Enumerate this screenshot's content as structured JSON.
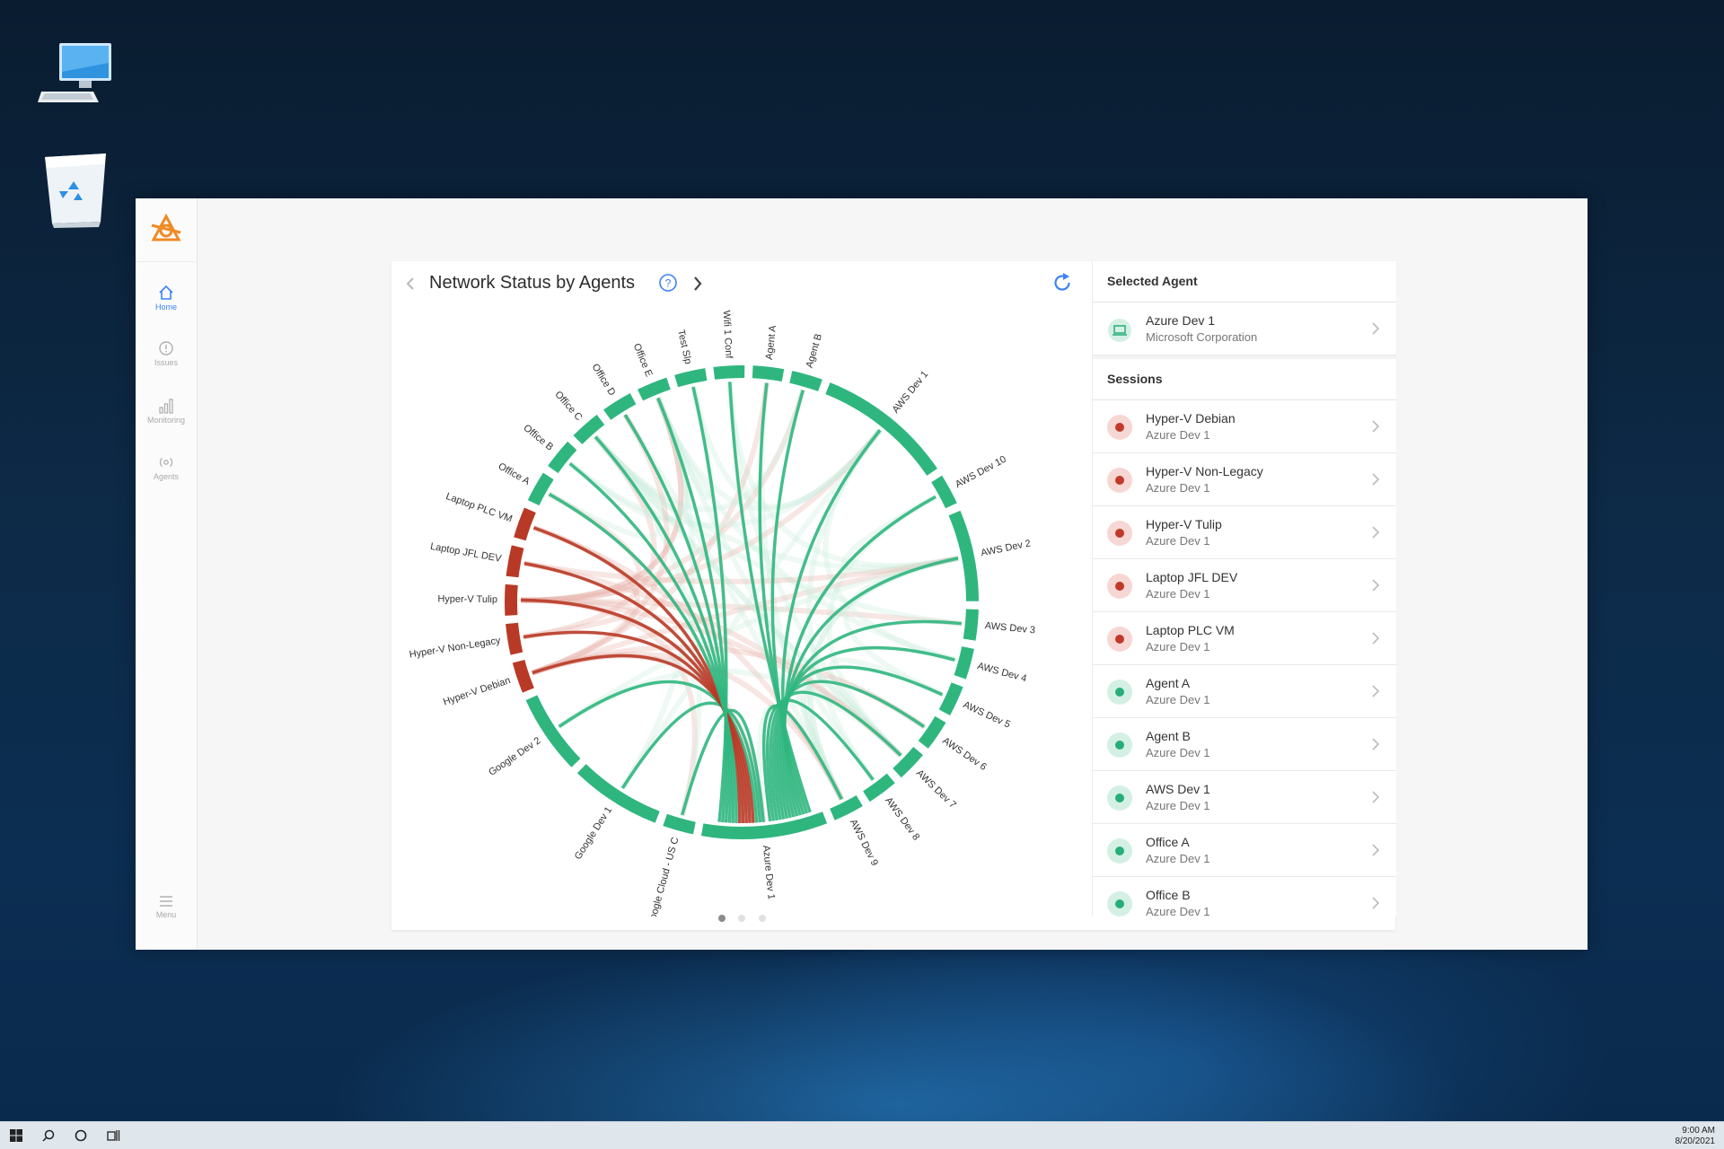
{
  "desktop": {
    "icons": [
      "this-pc-icon",
      "recycle-bin-icon"
    ]
  },
  "sidebar": {
    "items": [
      {
        "label": "Home",
        "icon": "home-icon",
        "active": true
      },
      {
        "label": "Issues",
        "icon": "alert-circle-icon",
        "active": false
      },
      {
        "label": "Monitoring",
        "icon": "bar-chart-icon",
        "active": false
      },
      {
        "label": "Agents",
        "icon": "broadcast-icon",
        "active": false
      }
    ],
    "menu_label": "Menu"
  },
  "card": {
    "title": "Network Status by Agents",
    "page_dots": 3,
    "active_dot": 1
  },
  "chart_data": {
    "type": "chord",
    "title": "Network Status by Agents",
    "colors": {
      "ok": "#2fb67e",
      "error": "#b83a26"
    },
    "nodes": [
      {
        "name": "Wifi 1 Conf",
        "status": "ok"
      },
      {
        "name": "Agent A",
        "status": "ok"
      },
      {
        "name": "Agent B",
        "status": "ok"
      },
      {
        "name": "AWS Dev 1",
        "status": "ok"
      },
      {
        "name": "AWS Dev 10",
        "status": "ok"
      },
      {
        "name": "AWS Dev 2",
        "status": "ok"
      },
      {
        "name": "AWS Dev 3",
        "status": "ok"
      },
      {
        "name": "AWS Dev 4",
        "status": "ok"
      },
      {
        "name": "AWS Dev 5",
        "status": "ok"
      },
      {
        "name": "AWS Dev 6",
        "status": "ok"
      },
      {
        "name": "AWS Dev 7",
        "status": "ok"
      },
      {
        "name": "AWS Dev 8",
        "status": "ok"
      },
      {
        "name": "AWS Dev 9",
        "status": "ok"
      },
      {
        "name": "Azure Dev 1",
        "status": "ok"
      },
      {
        "name": "Google Cloud - US C",
        "status": "ok"
      },
      {
        "name": "Google Dev 1",
        "status": "ok"
      },
      {
        "name": "Google Dev 2",
        "status": "ok"
      },
      {
        "name": "Hyper-V Debian",
        "status": "error"
      },
      {
        "name": "Hyper-V Non-Legacy",
        "status": "error"
      },
      {
        "name": "Hyper-V Tulip",
        "status": "error"
      },
      {
        "name": "Laptop JFL DEV",
        "status": "error"
      },
      {
        "name": "Laptop PLC VM",
        "status": "error"
      },
      {
        "name": "Office A",
        "status": "ok"
      },
      {
        "name": "Office B",
        "status": "ok"
      },
      {
        "name": "Office C",
        "status": "ok"
      },
      {
        "name": "Office D",
        "status": "ok"
      },
      {
        "name": "Office E",
        "status": "ok"
      },
      {
        "name": "Test Slp",
        "status": "ok"
      }
    ],
    "hub": "Azure Dev 1"
  },
  "panel": {
    "selected_header": "Selected Agent",
    "selected": {
      "name": "Azure Dev 1",
      "org": "Microsoft Corporation"
    },
    "sessions_header": "Sessions",
    "sessions": [
      {
        "name": "Hyper-V Debian",
        "agent": "Azure Dev 1",
        "status": "error"
      },
      {
        "name": "Hyper-V Non-Legacy",
        "agent": "Azure Dev 1",
        "status": "error"
      },
      {
        "name": "Hyper-V Tulip",
        "agent": "Azure Dev 1",
        "status": "error"
      },
      {
        "name": "Laptop JFL DEV",
        "agent": "Azure Dev 1",
        "status": "error"
      },
      {
        "name": "Laptop PLC VM",
        "agent": "Azure Dev 1",
        "status": "error"
      },
      {
        "name": "Agent A",
        "agent": "Azure Dev 1",
        "status": "ok"
      },
      {
        "name": "Agent B",
        "agent": "Azure Dev 1",
        "status": "ok"
      },
      {
        "name": "AWS Dev 1",
        "agent": "Azure Dev 1",
        "status": "ok"
      },
      {
        "name": "Office A",
        "agent": "Azure Dev 1",
        "status": "ok"
      },
      {
        "name": "Office B",
        "agent": "Azure Dev 1",
        "status": "ok"
      }
    ]
  },
  "taskbar": {
    "time": "9:00 AM",
    "date": "8/20/2021"
  }
}
